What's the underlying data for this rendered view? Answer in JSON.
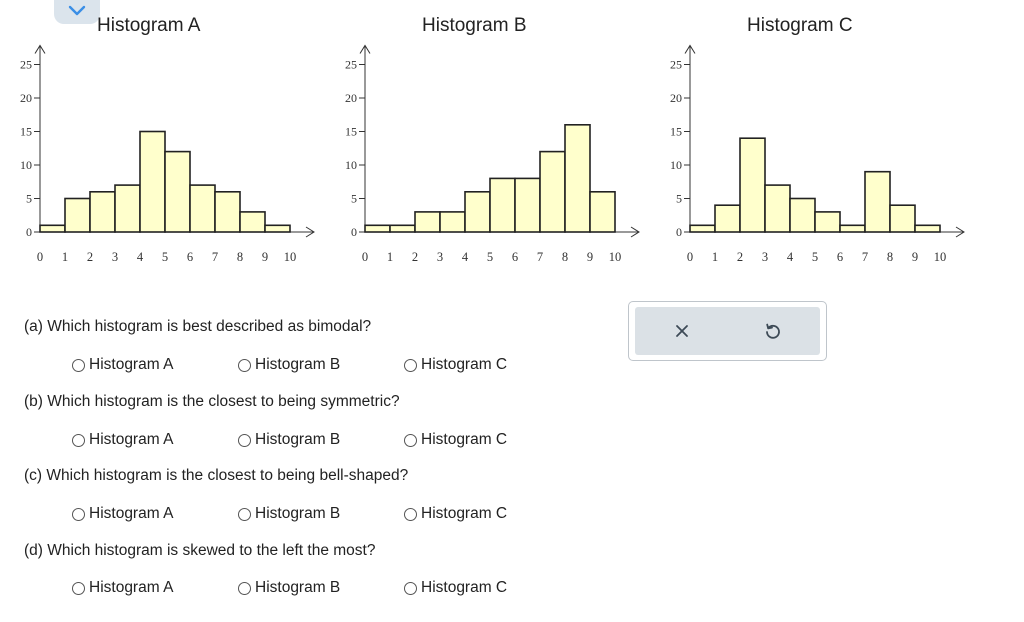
{
  "chart_data": [
    {
      "type": "bar",
      "title": "Histogram A",
      "bins": [
        [
          0,
          1
        ],
        [
          1,
          2
        ],
        [
          2,
          3
        ],
        [
          3,
          4
        ],
        [
          4,
          5
        ],
        [
          5,
          6
        ],
        [
          6,
          7
        ],
        [
          7,
          8
        ],
        [
          8,
          9
        ],
        [
          9,
          10
        ]
      ],
      "values": [
        1,
        5,
        6,
        7,
        15,
        12,
        7,
        6,
        3,
        1
      ],
      "x_ticks": [
        "0",
        "1",
        "2",
        "3",
        "4",
        "5",
        "6",
        "7",
        "8",
        "9",
        "10"
      ],
      "y_ticks": [
        "0",
        "5",
        "10",
        "15",
        "20",
        "25"
      ],
      "xlim": [
        0,
        10
      ],
      "ylim": [
        0,
        25
      ]
    },
    {
      "type": "bar",
      "title": "Histogram B",
      "bins": [
        [
          0,
          1
        ],
        [
          1,
          2
        ],
        [
          2,
          3
        ],
        [
          3,
          4
        ],
        [
          4,
          5
        ],
        [
          5,
          6
        ],
        [
          6,
          7
        ],
        [
          7,
          8
        ],
        [
          8,
          9
        ],
        [
          9,
          10
        ]
      ],
      "values": [
        1,
        1,
        3,
        3,
        6,
        8,
        8,
        12,
        16,
        6
      ],
      "x_ticks": [
        "0",
        "1",
        "2",
        "3",
        "4",
        "5",
        "6",
        "7",
        "8",
        "9",
        "10"
      ],
      "y_ticks": [
        "0",
        "5",
        "10",
        "15",
        "20",
        "25"
      ],
      "xlim": [
        0,
        10
      ],
      "ylim": [
        0,
        25
      ]
    },
    {
      "type": "bar",
      "title": "Histogram C",
      "bins": [
        [
          0,
          1
        ],
        [
          1,
          2
        ],
        [
          2,
          3
        ],
        [
          3,
          4
        ],
        [
          4,
          5
        ],
        [
          5,
          6
        ],
        [
          6,
          7
        ],
        [
          7,
          8
        ],
        [
          8,
          9
        ],
        [
          9,
          10
        ]
      ],
      "values": [
        1,
        4,
        14,
        7,
        5,
        3,
        1,
        9,
        4,
        1
      ],
      "x_ticks": [
        "0",
        "1",
        "2",
        "3",
        "4",
        "5",
        "6",
        "7",
        "8",
        "9",
        "10"
      ],
      "y_ticks": [
        "0",
        "5",
        "10",
        "15",
        "20",
        "25"
      ],
      "xlim": [
        0,
        10
      ],
      "ylim": [
        0,
        25
      ]
    }
  ],
  "colors": {
    "bar_fill": "#ffffcc",
    "bar_stroke": "#222222",
    "panel_bg": "#dbe1e6",
    "tab_bg": "#dbe4ec",
    "tab_chevron": "#3a8ee6"
  },
  "icons": {
    "collapse": "chevron-down-icon",
    "clear": "close-icon",
    "reset": "undo-icon"
  },
  "questions": [
    {
      "text": "(a) Which histogram is best described as bimodal?",
      "options": [
        "Histogram A",
        "Histogram B",
        "Histogram C"
      ]
    },
    {
      "text": "(b) Which histogram is the closest to being symmetric?",
      "options": [
        "Histogram A",
        "Histogram B",
        "Histogram C"
      ]
    },
    {
      "text": "(c) Which histogram is the closest to being bell-shaped?",
      "options": [
        "Histogram A",
        "Histogram B",
        "Histogram C"
      ]
    },
    {
      "text": "(d) Which histogram is skewed to the left the most?",
      "options": [
        "Histogram A",
        "Histogram B",
        "Histogram C"
      ]
    }
  ]
}
